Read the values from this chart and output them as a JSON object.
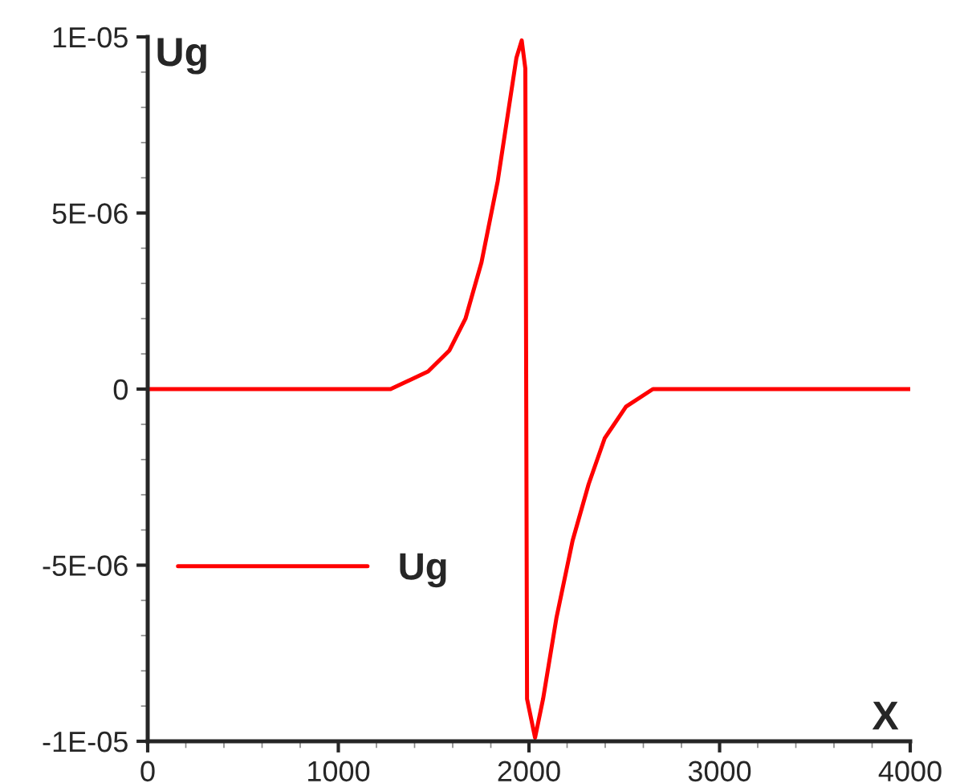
{
  "chart_data": {
    "type": "line",
    "xlabel": "X",
    "ylabel": "Ug",
    "series": [
      {
        "name": "Ug",
        "color": "#ff0000",
        "x": [
          0,
          1274,
          1471,
          1583,
          1667,
          1751,
          1836,
          1892,
          1934,
          1962,
          1981,
          1990,
          2032,
          2074,
          2144,
          2229,
          2313,
          2397,
          2509,
          2650,
          4000
        ],
        "values": [
          0,
          0,
          5e-07,
          1.1e-06,
          2e-06,
          3.6e-06,
          5.9e-06,
          7.9e-06,
          9.4e-06,
          9.9e-06,
          9.1e-06,
          -8.8e-06,
          -9.9e-06,
          -8.8e-06,
          -6.5e-06,
          -4.3e-06,
          -2.7e-06,
          -1.4e-06,
          -5e-07,
          0,
          0
        ]
      }
    ],
    "xlim": [
      0,
      4000
    ],
    "xticks": [
      0,
      1000,
      2000,
      3000,
      4000
    ],
    "ylim": [
      -1e-05,
      1e-05
    ],
    "yticks": [
      {
        "value": -1e-05,
        "label": "-1E-05"
      },
      {
        "value": -5e-06,
        "label": "-5E-06"
      },
      0,
      {
        "value": 5e-06,
        "label": "5E-06"
      },
      {
        "value": 1e-05,
        "label": "1E-05"
      }
    ],
    "grid": false,
    "legend": "lower left",
    "marker": "none",
    "line_style": "solid"
  }
}
